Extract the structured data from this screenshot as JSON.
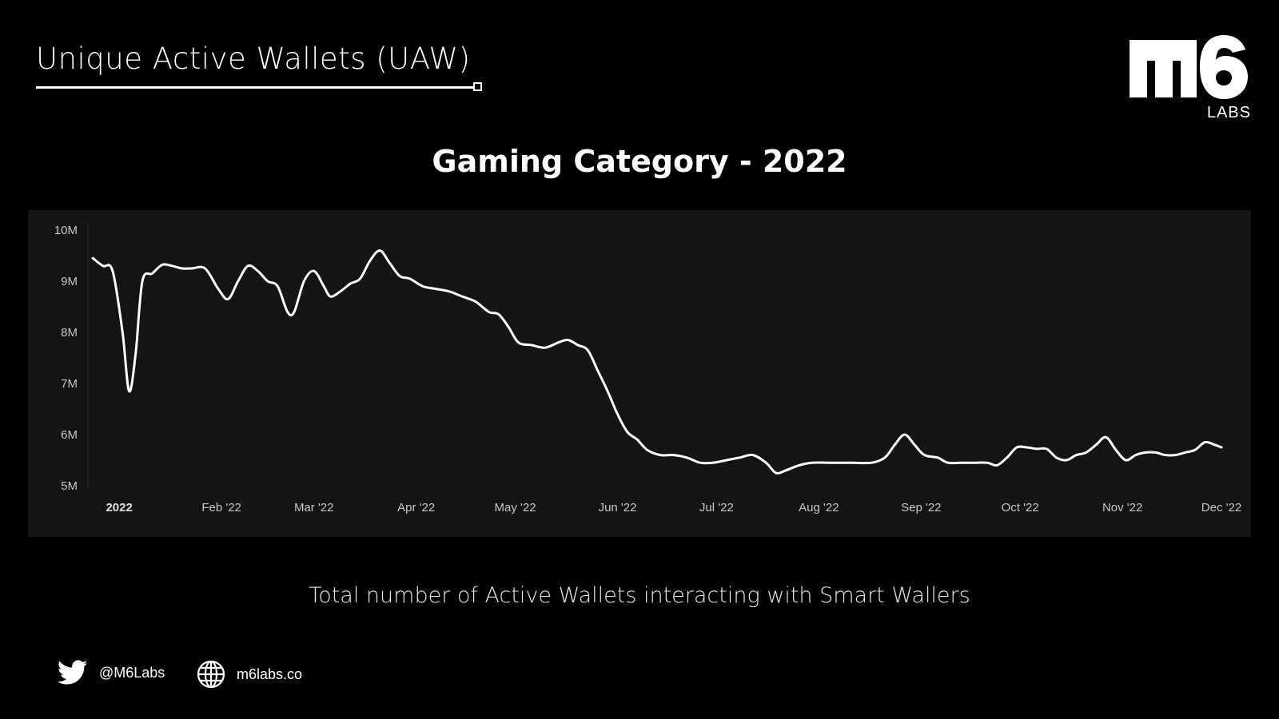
{
  "header": {
    "title": "Unique Active Wallets (UAW)",
    "logo_sub": "LABS"
  },
  "caption": "Total number of Active Wallets interacting with Smart Wallers",
  "footer": {
    "twitter_handle": "@M6Labs",
    "website": "m6labs.co"
  },
  "colors": {
    "background": "#000000",
    "panel": "#141414",
    "line": "#ffffff",
    "text": "#ffffff"
  },
  "icons": [
    "twitter-icon",
    "globe-icon"
  ],
  "chart_data": {
    "type": "line",
    "title": "Gaming Category - 2022",
    "xlabel": "",
    "ylabel": "",
    "ylim": [
      5,
      10
    ],
    "y_ticks": [
      {
        "value": 10,
        "label": "10M"
      },
      {
        "value": 9,
        "label": "9M"
      },
      {
        "value": 8,
        "label": "8M"
      },
      {
        "value": 7,
        "label": "7M"
      },
      {
        "value": 6,
        "label": "6M"
      },
      {
        "value": 5,
        "label": "5M"
      }
    ],
    "xlim": [
      "2021-12-23",
      "2022-12-01"
    ],
    "x_ticks": [
      {
        "value": "2022-01-01",
        "label": "2022",
        "bold": true
      },
      {
        "value": "2022-02-01",
        "label": "Feb '22"
      },
      {
        "value": "2022-03-01",
        "label": "Mar '22"
      },
      {
        "value": "2022-04-01",
        "label": "Apr '22"
      },
      {
        "value": "2022-05-01",
        "label": "May '22"
      },
      {
        "value": "2022-06-01",
        "label": "Jun '22"
      },
      {
        "value": "2022-07-01",
        "label": "Jul '22"
      },
      {
        "value": "2022-08-01",
        "label": "Aug '22"
      },
      {
        "value": "2022-09-01",
        "label": "Sep '22"
      },
      {
        "value": "2022-10-01",
        "label": "Oct '22"
      },
      {
        "value": "2022-11-01",
        "label": "Nov '22"
      },
      {
        "value": "2022-12-01",
        "label": "Dec '22"
      }
    ],
    "grid": false,
    "series": [
      {
        "points": [
          [
            "2021-12-24",
            9.45
          ],
          [
            "2021-12-27",
            9.3
          ],
          [
            "2021-12-30",
            9.2
          ],
          [
            "2022-01-02",
            8.0
          ],
          [
            "2022-01-04",
            6.85
          ],
          [
            "2022-01-06",
            7.6
          ],
          [
            "2022-01-08",
            9.0
          ],
          [
            "2022-01-11",
            9.15
          ],
          [
            "2022-01-14",
            9.32
          ],
          [
            "2022-01-17",
            9.3
          ],
          [
            "2022-01-20",
            9.25
          ],
          [
            "2022-01-23",
            9.25
          ],
          [
            "2022-01-27",
            9.25
          ],
          [
            "2022-01-31",
            8.85
          ],
          [
            "2022-02-03",
            8.65
          ],
          [
            "2022-02-06",
            9.0
          ],
          [
            "2022-02-09",
            9.3
          ],
          [
            "2022-02-12",
            9.2
          ],
          [
            "2022-02-15",
            9.0
          ],
          [
            "2022-02-18",
            8.9
          ],
          [
            "2022-02-21",
            8.4
          ],
          [
            "2022-02-23",
            8.4
          ],
          [
            "2022-02-26",
            9.0
          ],
          [
            "2022-03-01",
            9.2
          ],
          [
            "2022-03-04",
            8.9
          ],
          [
            "2022-03-06",
            8.7
          ],
          [
            "2022-03-09",
            8.8
          ],
          [
            "2022-03-12",
            8.95
          ],
          [
            "2022-03-15",
            9.05
          ],
          [
            "2022-03-18",
            9.4
          ],
          [
            "2022-03-21",
            9.6
          ],
          [
            "2022-03-24",
            9.35
          ],
          [
            "2022-03-27",
            9.1
          ],
          [
            "2022-03-30",
            9.05
          ],
          [
            "2022-04-03",
            8.9
          ],
          [
            "2022-04-07",
            8.85
          ],
          [
            "2022-04-11",
            8.8
          ],
          [
            "2022-04-15",
            8.7
          ],
          [
            "2022-04-19",
            8.6
          ],
          [
            "2022-04-23",
            8.4
          ],
          [
            "2022-04-26",
            8.35
          ],
          [
            "2022-04-29",
            8.1
          ],
          [
            "2022-05-02",
            7.8
          ],
          [
            "2022-05-06",
            7.75
          ],
          [
            "2022-05-10",
            7.7
          ],
          [
            "2022-05-14",
            7.8
          ],
          [
            "2022-05-17",
            7.85
          ],
          [
            "2022-05-20",
            7.75
          ],
          [
            "2022-05-23",
            7.65
          ],
          [
            "2022-05-26",
            7.25
          ],
          [
            "2022-05-29",
            6.85
          ],
          [
            "2022-06-01",
            6.4
          ],
          [
            "2022-06-04",
            6.05
          ],
          [
            "2022-06-07",
            5.9
          ],
          [
            "2022-06-10",
            5.7
          ],
          [
            "2022-06-14",
            5.6
          ],
          [
            "2022-06-18",
            5.6
          ],
          [
            "2022-06-22",
            5.55
          ],
          [
            "2022-06-26",
            5.45
          ],
          [
            "2022-06-30",
            5.45
          ],
          [
            "2022-07-04",
            5.5
          ],
          [
            "2022-07-08",
            5.55
          ],
          [
            "2022-07-12",
            5.6
          ],
          [
            "2022-07-16",
            5.45
          ],
          [
            "2022-07-19",
            5.25
          ],
          [
            "2022-07-22",
            5.3
          ],
          [
            "2022-07-26",
            5.4
          ],
          [
            "2022-07-30",
            5.45
          ],
          [
            "2022-08-05",
            5.45
          ],
          [
            "2022-08-11",
            5.45
          ],
          [
            "2022-08-17",
            5.45
          ],
          [
            "2022-08-21",
            5.55
          ],
          [
            "2022-08-24",
            5.8
          ],
          [
            "2022-08-27",
            6.0
          ],
          [
            "2022-08-30",
            5.8
          ],
          [
            "2022-09-02",
            5.6
          ],
          [
            "2022-09-06",
            5.55
          ],
          [
            "2022-09-09",
            5.45
          ],
          [
            "2022-09-13",
            5.45
          ],
          [
            "2022-09-17",
            5.45
          ],
          [
            "2022-09-21",
            5.45
          ],
          [
            "2022-09-24",
            5.4
          ],
          [
            "2022-09-27",
            5.55
          ],
          [
            "2022-09-30",
            5.75
          ],
          [
            "2022-10-03",
            5.75
          ],
          [
            "2022-10-06",
            5.72
          ],
          [
            "2022-10-09",
            5.72
          ],
          [
            "2022-10-12",
            5.55
          ],
          [
            "2022-10-15",
            5.5
          ],
          [
            "2022-10-18",
            5.6
          ],
          [
            "2022-10-21",
            5.65
          ],
          [
            "2022-10-24",
            5.8
          ],
          [
            "2022-10-27",
            5.95
          ],
          [
            "2022-10-30",
            5.7
          ],
          [
            "2022-11-02",
            5.5
          ],
          [
            "2022-11-05",
            5.6
          ],
          [
            "2022-11-08",
            5.65
          ],
          [
            "2022-11-11",
            5.65
          ],
          [
            "2022-11-14",
            5.6
          ],
          [
            "2022-11-17",
            5.6
          ],
          [
            "2022-11-20",
            5.65
          ],
          [
            "2022-11-23",
            5.7
          ],
          [
            "2022-11-26",
            5.85
          ],
          [
            "2022-11-29",
            5.8
          ],
          [
            "2022-12-01",
            5.75
          ]
        ]
      }
    ]
  }
}
